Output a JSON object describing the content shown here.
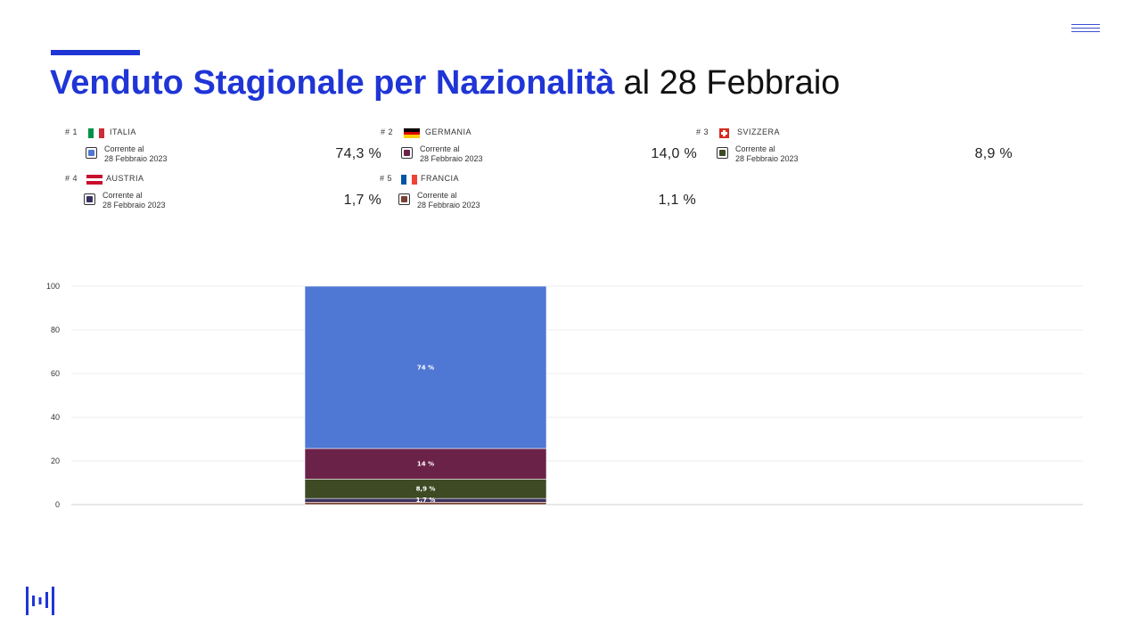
{
  "header": {
    "title_bold": "Venduto Stagionale per Nazionalità",
    "title_rest": "al 28 Febbraio"
  },
  "legend": [
    {
      "rank": "# 1",
      "country": "ITALIA",
      "label_line1": "Corrente al",
      "label_line2": "28 Febbraio 2023",
      "value": "74,3 %",
      "color": "#4f77d4",
      "flag": "it"
    },
    {
      "rank": "# 2",
      "country": "GERMANIA",
      "label_line1": "Corrente al",
      "label_line2": "28 Febbraio 2023",
      "value": "14,0 %",
      "color": "#6b2249",
      "flag": "de"
    },
    {
      "rank": "# 3",
      "country": "SVIZZERA",
      "label_line1": "Corrente al",
      "label_line2": "28 Febbraio 2023",
      "value": "8,9 %",
      "color": "#3d4a24",
      "flag": "ch"
    },
    {
      "rank": "# 4",
      "country": "AUSTRIA",
      "label_line1": "Corrente al",
      "label_line2": "28 Febbraio 2023",
      "value": "1,7 %",
      "color": "#3a2f5e",
      "flag": "at"
    },
    {
      "rank": "# 5",
      "country": "FRANCIA",
      "label_line1": "Corrente al",
      "label_line2": "28 Febbraio 2023",
      "value": "1,1 %",
      "color": "#7a3f33",
      "flag": "fr"
    }
  ],
  "chart_data": {
    "type": "bar",
    "stacked": true,
    "categories": [
      "28 Febbraio 2023"
    ],
    "series": [
      {
        "name": "ITALIA",
        "values": [
          74.3
        ],
        "color": "#4f77d4",
        "data_label": "74 %"
      },
      {
        "name": "GERMANIA",
        "values": [
          14.0
        ],
        "color": "#6b2249",
        "data_label": "14 %"
      },
      {
        "name": "SVIZZERA",
        "values": [
          8.9
        ],
        "color": "#3d4a24",
        "data_label": "8,9 %"
      },
      {
        "name": "AUSTRIA",
        "values": [
          1.7
        ],
        "color": "#3a2f5e",
        "data_label": "1,7 %"
      },
      {
        "name": "FRANCIA",
        "values": [
          1.1
        ],
        "color": "#7a3f33",
        "data_label": ""
      }
    ],
    "ylim": [
      0,
      100
    ],
    "yticks": [
      0,
      20,
      40,
      60,
      80,
      100
    ],
    "grid": true,
    "title": "",
    "xlabel": "",
    "ylabel": ""
  },
  "colors": {
    "accent": "#1f35d6"
  },
  "icons": {
    "menu": "menu-icon",
    "logo": "brand-logo-icon"
  }
}
